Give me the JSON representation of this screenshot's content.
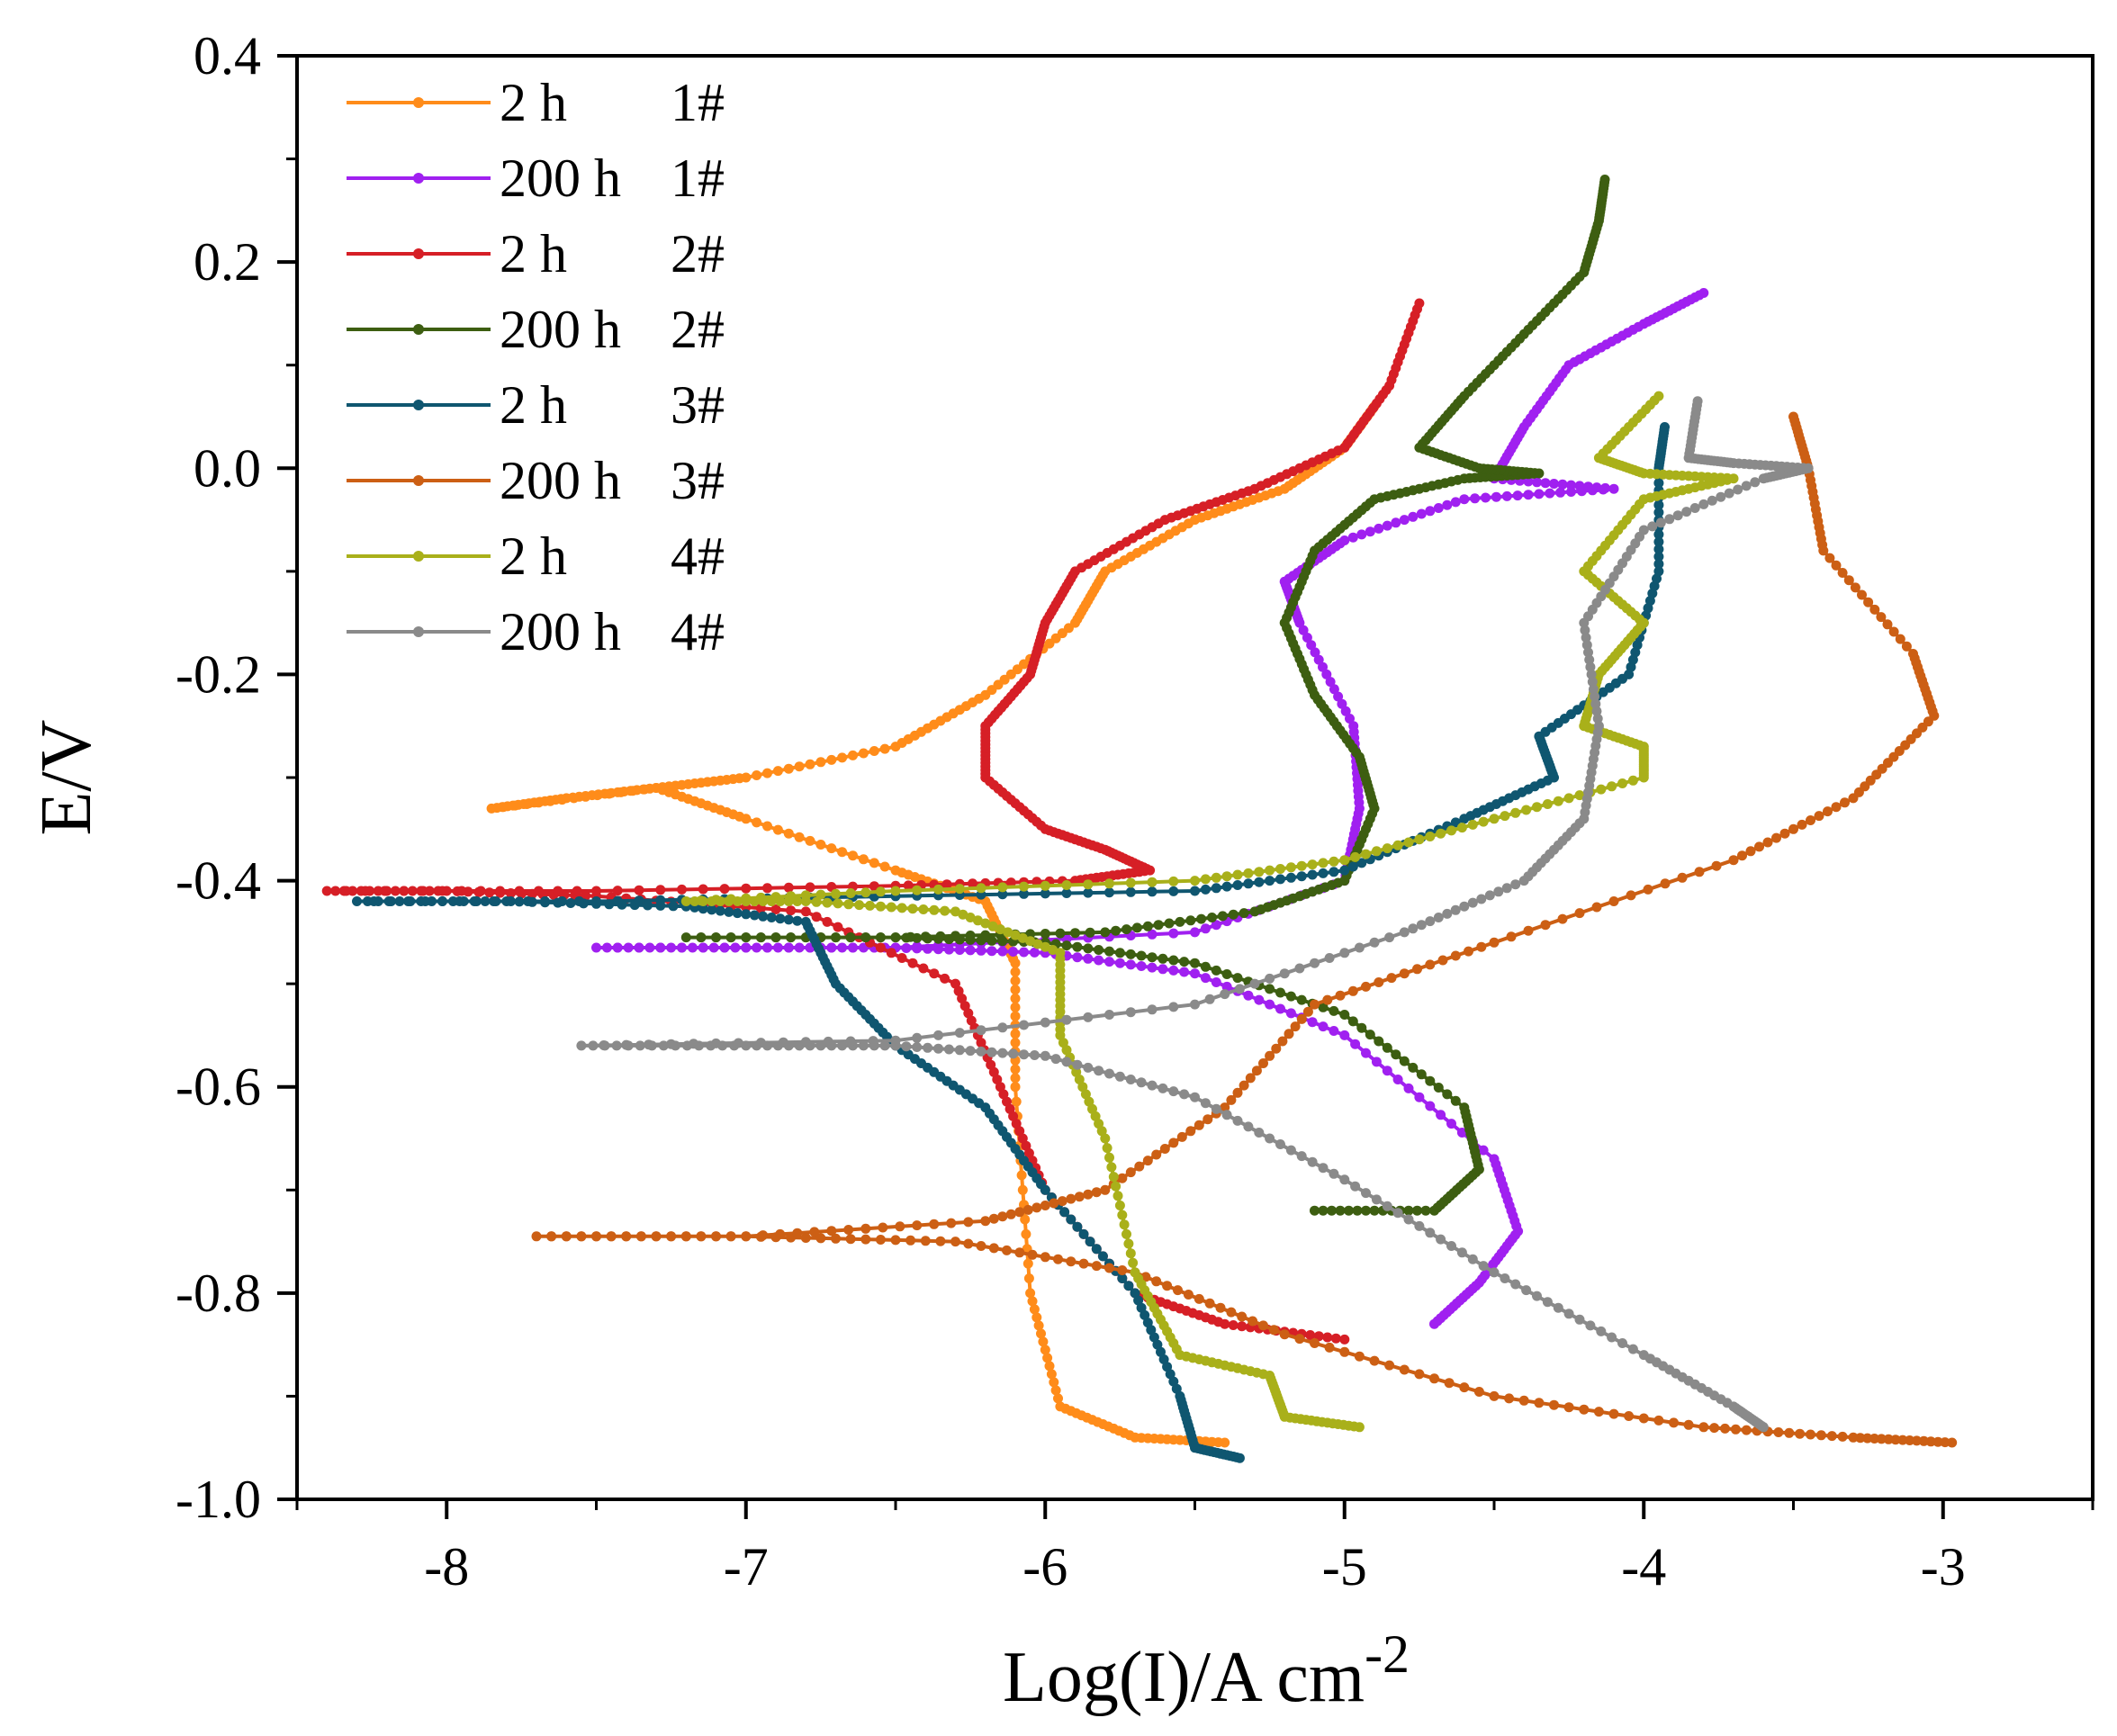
{
  "chart_data": {
    "type": "line",
    "title": "",
    "xlabel": "Log(I)/A cm",
    "xlabel_sup": "-2",
    "ylabel": "E/V",
    "xlim": [
      -8.5,
      -2.5
    ],
    "ylim": [
      -1.0,
      0.4
    ],
    "x_ticks": [
      -8,
      -7,
      -6,
      -5,
      -4,
      -3
    ],
    "x_tick_labels": [
      "-8",
      "-7",
      "-6",
      "-5",
      "-4",
      "-3"
    ],
    "y_ticks": [
      0.4,
      0.2,
      0.0,
      -0.2,
      -0.4,
      -0.6,
      -0.8,
      -1.0
    ],
    "y_tick_labels": [
      "0.4",
      "0.2",
      "0.0",
      "-0.2",
      "-0.4",
      "-0.6",
      "-0.8",
      "-1.0"
    ],
    "grid": false,
    "legend_position": "top-left",
    "series": [
      {
        "name": "2 h",
        "sample": "1#",
        "color": "#ff8c1a",
        "points": [
          [
            -5.4,
            -0.945
          ],
          [
            -5.7,
            -0.94
          ],
          [
            -5.95,
            -0.91
          ],
          [
            -6.05,
            -0.8
          ],
          [
            -6.1,
            -0.6
          ],
          [
            -6.1,
            -0.48
          ],
          [
            -6.2,
            -0.42
          ],
          [
            -6.5,
            -0.39
          ],
          [
            -7.0,
            -0.34
          ],
          [
            -7.3,
            -0.31
          ],
          [
            -7.6,
            -0.32
          ],
          [
            -7.85,
            -0.33
          ],
          [
            -7.3,
            -0.31
          ],
          [
            -7.0,
            -0.3
          ],
          [
            -6.5,
            -0.27
          ],
          [
            -6.2,
            -0.22
          ],
          [
            -5.9,
            -0.15
          ],
          [
            -5.8,
            -0.1
          ],
          [
            -5.5,
            -0.05
          ],
          [
            -5.2,
            -0.02
          ],
          [
            -5.0,
            0.02
          ],
          [
            -4.9,
            0.06
          ]
        ]
      },
      {
        "name": "200 h",
        "sample": "1#",
        "color": "#a020f0",
        "points": [
          [
            -4.7,
            -0.83
          ],
          [
            -4.55,
            -0.79
          ],
          [
            -4.42,
            -0.74
          ],
          [
            -4.5,
            -0.67
          ],
          [
            -5.0,
            -0.55
          ],
          [
            -5.5,
            -0.49
          ],
          [
            -6.0,
            -0.47
          ],
          [
            -6.5,
            -0.465
          ],
          [
            -7.0,
            -0.465
          ],
          [
            -7.5,
            -0.465
          ],
          [
            -6.5,
            -0.465
          ],
          [
            -5.5,
            -0.45
          ],
          [
            -5.0,
            -0.4
          ],
          [
            -4.95,
            -0.33
          ],
          [
            -4.97,
            -0.25
          ],
          [
            -5.15,
            -0.15
          ],
          [
            -5.2,
            -0.11
          ],
          [
            -5.0,
            -0.07
          ],
          [
            -4.6,
            -0.03
          ],
          [
            -4.1,
            -0.02
          ],
          [
            -4.5,
            -0.01
          ],
          [
            -4.4,
            0.04
          ],
          [
            -4.25,
            0.1
          ],
          [
            -4.0,
            0.14
          ],
          [
            -3.8,
            0.17
          ]
        ]
      },
      {
        "name": "2 h",
        "sample": "2#",
        "color": "#d61f26",
        "points": [
          [
            -5.0,
            -0.845
          ],
          [
            -5.4,
            -0.83
          ],
          [
            -5.7,
            -0.8
          ],
          [
            -6.0,
            -0.7
          ],
          [
            -6.15,
            -0.6
          ],
          [
            -6.3,
            -0.5
          ],
          [
            -6.8,
            -0.43
          ],
          [
            -7.5,
            -0.415
          ],
          [
            -8.0,
            -0.41
          ],
          [
            -8.4,
            -0.41
          ],
          [
            -7.5,
            -0.41
          ],
          [
            -6.5,
            -0.405
          ],
          [
            -5.9,
            -0.4
          ],
          [
            -5.65,
            -0.39
          ],
          [
            -5.8,
            -0.37
          ],
          [
            -6.0,
            -0.35
          ],
          [
            -6.2,
            -0.3
          ],
          [
            -6.2,
            -0.25
          ],
          [
            -6.05,
            -0.2
          ],
          [
            -6.0,
            -0.15
          ],
          [
            -5.9,
            -0.1
          ],
          [
            -5.6,
            -0.05
          ],
          [
            -5.3,
            -0.02
          ],
          [
            -5.0,
            0.02
          ],
          [
            -4.85,
            0.08
          ],
          [
            -4.75,
            0.16
          ]
        ]
      },
      {
        "name": "200 h",
        "sample": "2#",
        "color": "#3d5e11",
        "points": [
          [
            -5.1,
            -0.72
          ],
          [
            -4.7,
            -0.72
          ],
          [
            -4.55,
            -0.68
          ],
          [
            -4.6,
            -0.62
          ],
          [
            -5.0,
            -0.53
          ],
          [
            -5.5,
            -0.48
          ],
          [
            -6.0,
            -0.46
          ],
          [
            -6.5,
            -0.455
          ],
          [
            -7.2,
            -0.455
          ],
          [
            -6.5,
            -0.455
          ],
          [
            -5.8,
            -0.45
          ],
          [
            -5.3,
            -0.43
          ],
          [
            -5.0,
            -0.4
          ],
          [
            -4.9,
            -0.33
          ],
          [
            -4.95,
            -0.28
          ],
          [
            -5.1,
            -0.22
          ],
          [
            -5.2,
            -0.15
          ],
          [
            -5.1,
            -0.08
          ],
          [
            -4.9,
            -0.03
          ],
          [
            -4.6,
            -0.01
          ],
          [
            -4.35,
            -0.005
          ],
          [
            -4.55,
            0.0
          ],
          [
            -4.75,
            0.02
          ],
          [
            -4.6,
            0.07
          ],
          [
            -4.4,
            0.13
          ],
          [
            -4.2,
            0.19
          ],
          [
            -4.15,
            0.24
          ],
          [
            -4.13,
            0.28
          ]
        ]
      },
      {
        "name": "2 h",
        "sample": "3#",
        "color": "#0f5670",
        "points": [
          [
            -5.35,
            -0.96
          ],
          [
            -5.5,
            -0.95
          ],
          [
            -5.55,
            -0.9
          ],
          [
            -5.7,
            -0.8
          ],
          [
            -6.0,
            -0.7
          ],
          [
            -6.2,
            -0.62
          ],
          [
            -6.5,
            -0.56
          ],
          [
            -6.7,
            -0.5
          ],
          [
            -6.8,
            -0.44
          ],
          [
            -7.2,
            -0.425
          ],
          [
            -7.8,
            -0.42
          ],
          [
            -8.3,
            -0.42
          ],
          [
            -7.5,
            -0.42
          ],
          [
            -6.5,
            -0.415
          ],
          [
            -5.5,
            -0.41
          ],
          [
            -5.0,
            -0.39
          ],
          [
            -4.6,
            -0.34
          ],
          [
            -4.3,
            -0.3
          ],
          [
            -4.35,
            -0.26
          ],
          [
            -4.05,
            -0.2
          ],
          [
            -3.95,
            -0.1
          ],
          [
            -3.95,
            0.0
          ],
          [
            -3.93,
            0.04
          ]
        ]
      },
      {
        "name": "200 h",
        "sample": "3#",
        "color": "#cc5f14",
        "points": [
          [
            -2.97,
            -0.945
          ],
          [
            -3.3,
            -0.94
          ],
          [
            -3.8,
            -0.93
          ],
          [
            -4.5,
            -0.9
          ],
          [
            -5.2,
            -0.84
          ],
          [
            -5.7,
            -0.78
          ],
          [
            -6.3,
            -0.75
          ],
          [
            -7.0,
            -0.745
          ],
          [
            -7.7,
            -0.745
          ],
          [
            -7.0,
            -0.745
          ],
          [
            -6.2,
            -0.73
          ],
          [
            -5.8,
            -0.7
          ],
          [
            -5.4,
            -0.62
          ],
          [
            -5.1,
            -0.52
          ],
          [
            -4.5,
            -0.46
          ],
          [
            -3.7,
            -0.38
          ],
          [
            -3.3,
            -0.32
          ],
          [
            -3.03,
            -0.24
          ],
          [
            -3.1,
            -0.18
          ],
          [
            -3.4,
            -0.08
          ],
          [
            -3.45,
            0.0
          ],
          [
            -3.5,
            0.05
          ]
        ]
      },
      {
        "name": "2 h",
        "sample": "4#",
        "color": "#a9b01a",
        "points": [
          [
            -4.95,
            -0.93
          ],
          [
            -5.2,
            -0.92
          ],
          [
            -5.25,
            -0.88
          ],
          [
            -5.55,
            -0.86
          ],
          [
            -5.7,
            -0.78
          ],
          [
            -5.8,
            -0.65
          ],
          [
            -5.95,
            -0.55
          ],
          [
            -5.95,
            -0.47
          ],
          [
            -6.3,
            -0.43
          ],
          [
            -6.8,
            -0.42
          ],
          [
            -7.2,
            -0.42
          ],
          [
            -6.5,
            -0.41
          ],
          [
            -5.5,
            -0.4
          ],
          [
            -5.0,
            -0.38
          ],
          [
            -4.5,
            -0.34
          ],
          [
            -4.0,
            -0.3
          ],
          [
            -4.0,
            -0.27
          ],
          [
            -4.2,
            -0.25
          ],
          [
            -4.15,
            -0.2
          ],
          [
            -4.0,
            -0.15
          ],
          [
            -4.2,
            -0.1
          ],
          [
            -4.0,
            -0.03
          ],
          [
            -3.7,
            -0.01
          ],
          [
            -4.0,
            -0.005
          ],
          [
            -4.15,
            0.01
          ],
          [
            -3.95,
            0.07
          ]
        ]
      },
      {
        "name": "200 h",
        "sample": "4#",
        "color": "#8a8a8a",
        "points": [
          [
            -3.6,
            -0.93
          ],
          [
            -3.7,
            -0.91
          ],
          [
            -4.0,
            -0.86
          ],
          [
            -4.5,
            -0.78
          ],
          [
            -5.0,
            -0.69
          ],
          [
            -5.5,
            -0.61
          ],
          [
            -6.0,
            -0.57
          ],
          [
            -6.5,
            -0.56
          ],
          [
            -7.0,
            -0.56
          ],
          [
            -7.55,
            -0.56
          ],
          [
            -6.5,
            -0.555
          ],
          [
            -5.5,
            -0.52
          ],
          [
            -4.8,
            -0.45
          ],
          [
            -4.4,
            -0.4
          ],
          [
            -4.2,
            -0.34
          ],
          [
            -4.15,
            -0.25
          ],
          [
            -4.2,
            -0.15
          ],
          [
            -4.0,
            -0.06
          ],
          [
            -3.6,
            -0.01
          ],
          [
            -3.45,
            0.0
          ],
          [
            -3.7,
            0.005
          ],
          [
            -3.85,
            0.01
          ],
          [
            -3.82,
            0.065
          ]
        ]
      }
    ]
  }
}
